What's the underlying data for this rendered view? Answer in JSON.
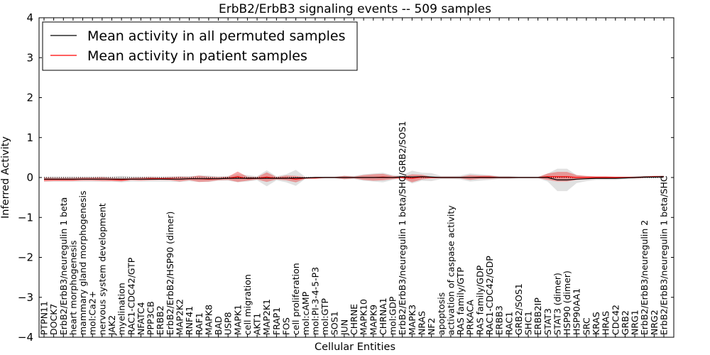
{
  "chart_data": {
    "type": "line",
    "title": "ErbB2/ErbB3 signaling events -- 509 samples",
    "xlabel": "Cellular Entities",
    "ylabel": "Inferred Activity",
    "ylim": [
      -4,
      4
    ],
    "yticks": [
      "4",
      "3",
      "2",
      "1",
      "0",
      "−1",
      "−2",
      "−3",
      "−4"
    ],
    "legend": {
      "position": "top-left",
      "entries": [
        {
          "label": "Mean activity in all permuted samples",
          "color": "#000000"
        },
        {
          "label": "Mean activity in patient samples",
          "color": "#ff0000"
        }
      ]
    },
    "categories": [
      "PTPN11",
      "DOCK7",
      "ErbB2/ErbB3/neuregulin 1 beta",
      "heart morphogenesis",
      "mammary gland morphogenesis",
      "mol:Ca2+",
      "nervous system development",
      "JAK2",
      "myelination",
      "RAC1-CDC42/GTP",
      "NFATC4",
      "PPP3CB",
      "ERBB2",
      "ErbB2/ErbB2/HSP90 (dimer)",
      "MAP2K2",
      "RNF41",
      "RAF1",
      "MAPK8",
      "BAD",
      "USP8",
      "MAPK1",
      "cell migration",
      "AKT1",
      "MAP2K1",
      "FRAP1",
      "FOS",
      "cell proliferation",
      "mol:cAMP",
      "mol:PI-3-4-5-P3",
      "mol:GTP",
      "SOS1",
      "JUN",
      "CHRNE",
      "MAPK10",
      "MAPK9",
      "CHRNA1",
      "mol:GDP",
      "ErbB2/ErbB3/neuregulin 1 beta/SHC/GRB2/SOS1",
      "MAPK3",
      "NRAS",
      "NF2",
      "apoptosis",
      "activation of caspase activity",
      "RAS family/GTP",
      "PRKACA",
      "RAS family/GDP",
      "RAC1-CDC42/GDP",
      "ERBB3",
      "RAC1",
      "GRB2/SOS1",
      "SHC1",
      "ERBB2IP",
      "STAT3",
      "STAT3 (dimer)",
      "HSP90 (dimer)",
      "HSP90AA1",
      "SRC",
      "KRAS",
      "HRAS",
      "CDC42",
      "GRB2",
      "NRG1",
      "ErbB2/ErbB3/neuregulin 2",
      "NRG2",
      "ErbB2/ErbB3/neuregulin 1 beta/SHC"
    ],
    "series": [
      {
        "name": "Mean activity in all permuted samples",
        "color": "#000000",
        "values": [
          -0.04,
          -0.04,
          -0.04,
          -0.04,
          -0.04,
          -0.04,
          -0.04,
          -0.04,
          -0.04,
          -0.04,
          -0.04,
          -0.04,
          -0.04,
          -0.04,
          -0.04,
          -0.03,
          -0.03,
          -0.03,
          -0.03,
          -0.02,
          -0.02,
          -0.02,
          -0.02,
          -0.02,
          -0.02,
          -0.02,
          -0.01,
          -0.01,
          0,
          0,
          0,
          0,
          0,
          0,
          0,
          0,
          0,
          0.02,
          0.01,
          0.02,
          0.01,
          0,
          0,
          0,
          0,
          0,
          0,
          0,
          0,
          0,
          0,
          0,
          0,
          -0.06,
          -0.06,
          -0.04,
          -0.03,
          -0.02,
          -0.02,
          -0.02,
          -0.01,
          0,
          0.01,
          0.01,
          0.02
        ]
      },
      {
        "name": "Mean activity in patient samples",
        "color": "#ff0000",
        "values": [
          -0.05,
          -0.05,
          -0.05,
          -0.05,
          -0.04,
          -0.04,
          -0.04,
          -0.05,
          -0.06,
          -0.04,
          -0.04,
          -0.03,
          -0.03,
          -0.03,
          -0.04,
          -0.03,
          -0.03,
          -0.04,
          -0.03,
          -0.02,
          0.02,
          -0.03,
          -0.02,
          0.01,
          -0.02,
          -0.01,
          -0.04,
          -0.01,
          -0.01,
          0,
          0,
          0,
          0,
          0,
          0,
          0.01,
          0,
          0,
          -0.02,
          0.01,
          0,
          0,
          0,
          0,
          0,
          0.01,
          0.01,
          0,
          0,
          0,
          0,
          0,
          0.02,
          0.02,
          0.02,
          0,
          0,
          0,
          0,
          0,
          0,
          0,
          0.01,
          0.02,
          0.02
        ]
      }
    ],
    "red_band": [
      0.05,
      0.04,
      0.04,
      0.04,
      0.04,
      0.04,
      0.05,
      0.04,
      0.04,
      0.03,
      0.04,
      0.04,
      0.03,
      0.04,
      0.06,
      0.04,
      0.08,
      0.06,
      0.04,
      0.04,
      0.13,
      0.05,
      0.03,
      0.12,
      0.03,
      0.06,
      0.08,
      0.02,
      0.02,
      0.01,
      0.01,
      0.04,
      0.02,
      0.06,
      0.08,
      0.08,
      0.04,
      0.02,
      0.1,
      0.06,
      0.02,
      0.02,
      0.02,
      0.02,
      0.06,
      0.04,
      0.04,
      0.02,
      0.02,
      0.01,
      0.01,
      0.01,
      0.08,
      0.12,
      0.12,
      0.06,
      0.04,
      0.03,
      0.03,
      0.02,
      0.02,
      0.02,
      0.02,
      0.02,
      0.02
    ],
    "gray_band": [
      0.06,
      0.06,
      0.06,
      0.06,
      0.06,
      0.06,
      0.06,
      0.06,
      0.08,
      0.06,
      0.06,
      0.06,
      0.06,
      0.06,
      0.07,
      0.06,
      0.08,
      0.08,
      0.05,
      0.06,
      0.1,
      0.08,
      0.05,
      0.2,
      0.05,
      0.1,
      0.2,
      0.02,
      0.02,
      0.02,
      0.02,
      0.05,
      0.04,
      0.08,
      0.1,
      0.12,
      0.06,
      0.04,
      0.16,
      0.1,
      0.1,
      0.04,
      0.04,
      0.05,
      0.1,
      0.08,
      0.06,
      0.04,
      0.04,
      0.02,
      0.02,
      0.02,
      0.1,
      0.28,
      0.28,
      0.1,
      0.06,
      0.04,
      0.04,
      0.04,
      0.03,
      0.03,
      0.03,
      0.03,
      0.03
    ]
  }
}
